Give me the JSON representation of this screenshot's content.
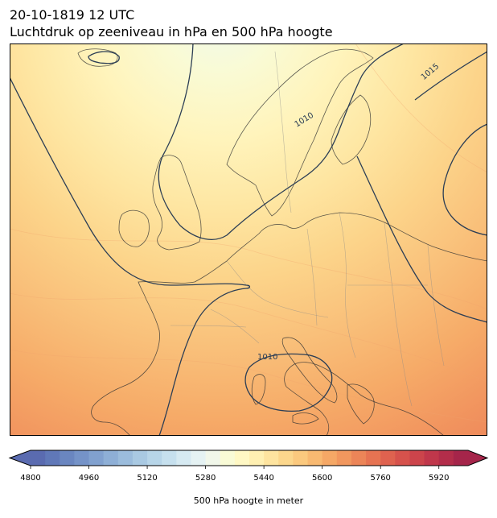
{
  "header": {
    "datetime": "20-10-1819 12 UTC",
    "subtitle": "Luchtdruk op zeeniveau in hPa en 500 hPa hoogte"
  },
  "map": {
    "region": "Europe",
    "projection": "lat-lon",
    "isobar_color": "#2c3e55",
    "coastline_color": "#333333",
    "border_color": "#888888",
    "isobar_labels": [
      "1010",
      "1015",
      "1010"
    ]
  },
  "colorbar": {
    "label": "500 hPa hoogte in meter",
    "min": 4800,
    "max": 6000,
    "step": 40,
    "extend": "both",
    "ticks": [
      "4800",
      "4960",
      "5120",
      "5280",
      "5440",
      "5600",
      "5760",
      "5920"
    ],
    "colormap": "RdYlBu_r",
    "colors": [
      "#5a6bb0",
      "#6078b8",
      "#6a86c0",
      "#7593c8",
      "#81a1cf",
      "#8eafd6",
      "#9bbcdc",
      "#a9c9e2",
      "#b7d5e8",
      "#c6e0ee",
      "#d6eaf2",
      "#e5f2f3",
      "#f1f7ea",
      "#f9fbd6",
      "#fff8c4",
      "#fff0b2",
      "#fee49f",
      "#fcd78c",
      "#fbc97e",
      "#f8b971",
      "#f5a866",
      "#f1975e",
      "#ec8558",
      "#e67352",
      "#df624f",
      "#d6524c",
      "#cc444b",
      "#c0374b",
      "#b32d4a",
      "#a5254a"
    ]
  }
}
